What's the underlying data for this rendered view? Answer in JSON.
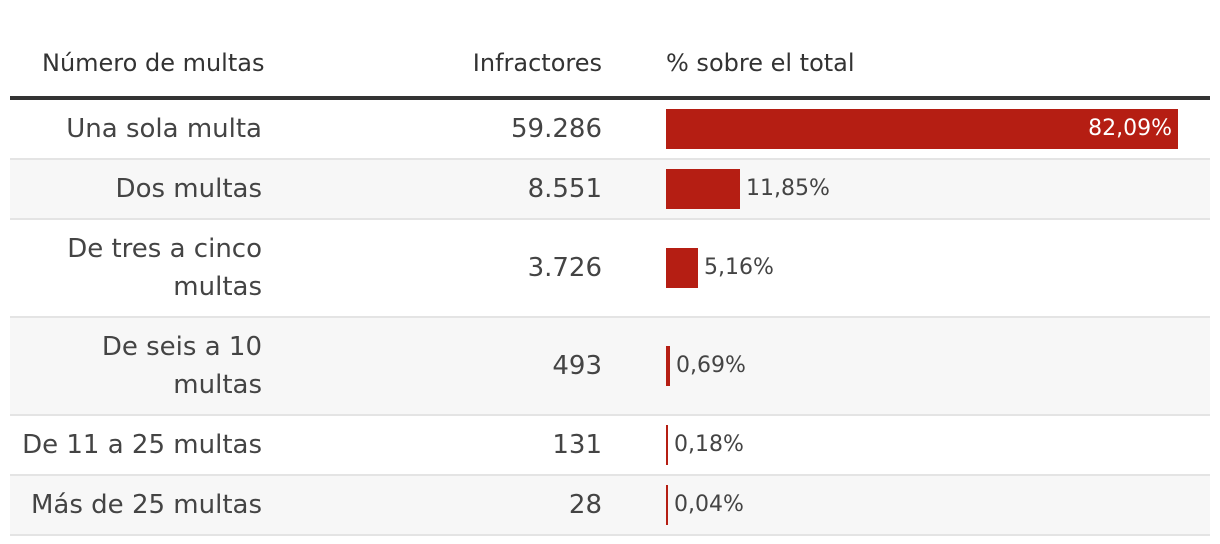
{
  "headers": {
    "category": "Número de multas",
    "offenders": "Infractores",
    "percent": "% sobre el total"
  },
  "colors": {
    "bar": "#b51e13",
    "row_shade": "#f7f7f7",
    "rule": "#333333",
    "divider": "#e4e4e4"
  },
  "chart_data": {
    "type": "table",
    "title": "",
    "columns": [
      "Número de multas",
      "Infractores",
      "% sobre el total"
    ],
    "rows": [
      {
        "category": "Una sola multa",
        "offenders": "59.286",
        "percent": 82.09,
        "percent_label": "82,09%"
      },
      {
        "category": "Dos multas",
        "offenders": "8.551",
        "percent": 11.85,
        "percent_label": "11,85%"
      },
      {
        "category": "De tres a cinco multas",
        "offenders": "3.726",
        "percent": 5.16,
        "percent_label": "5,16%"
      },
      {
        "category": "De seis a 10 multas",
        "offenders": "493",
        "percent": 0.69,
        "percent_label": "0,69%"
      },
      {
        "category": "De 11 a 25 multas",
        "offenders": "131",
        "percent": 0.18,
        "percent_label": "0,18%"
      },
      {
        "category": "Más de 25 multas",
        "offenders": "28",
        "percent": 0.04,
        "percent_label": "0,04%"
      }
    ]
  }
}
